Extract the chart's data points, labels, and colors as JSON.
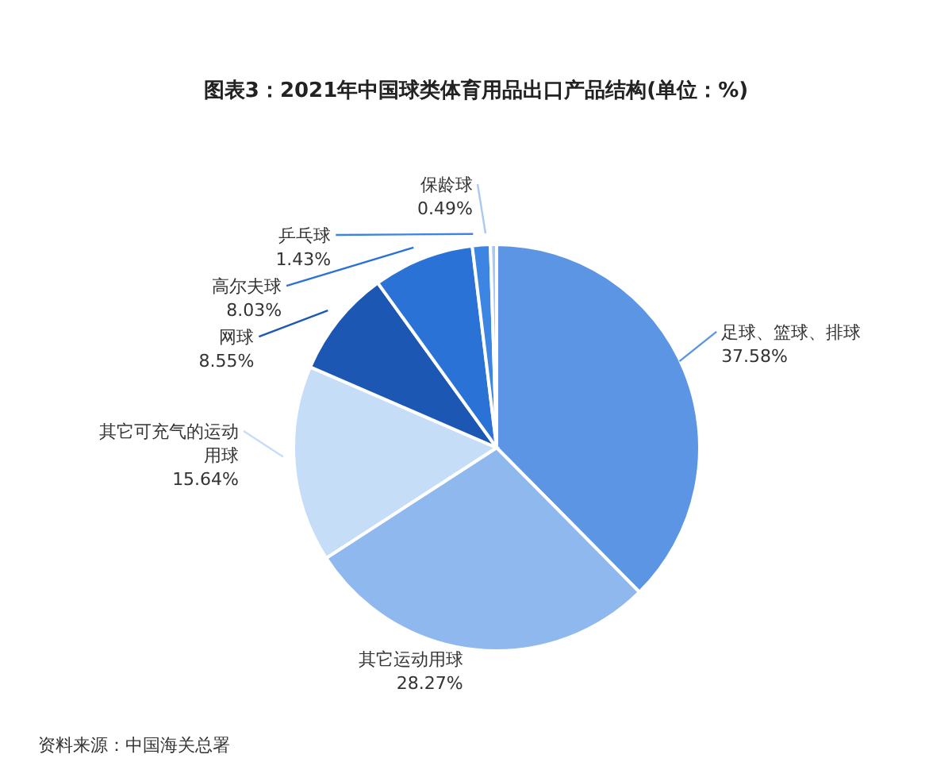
{
  "chart_data": {
    "type": "pie",
    "title": "图表3：2021年中国球类体育用品出口产品结构(单位：%)",
    "categories": [
      "足球、篮球、排球",
      "其它运动用球",
      "其它可充气的运动用球",
      "网球",
      "高尔夫球",
      "乒乓球",
      "保龄球"
    ],
    "values": [
      37.58,
      28.27,
      15.64,
      8.55,
      8.03,
      1.43,
      0.49
    ],
    "value_labels": [
      "37.58%",
      "28.27%",
      "15.64%",
      "8.55%",
      "8.03%",
      "1.43%",
      "0.49%"
    ],
    "colors": [
      "#5b95e3",
      "#8fb8ef",
      "#c6ddf8",
      "#1c58b3",
      "#2a72d6",
      "#3d85e2",
      "#a8c9f2"
    ],
    "annotations": [
      "资料来源：中国海关总署"
    ]
  }
}
